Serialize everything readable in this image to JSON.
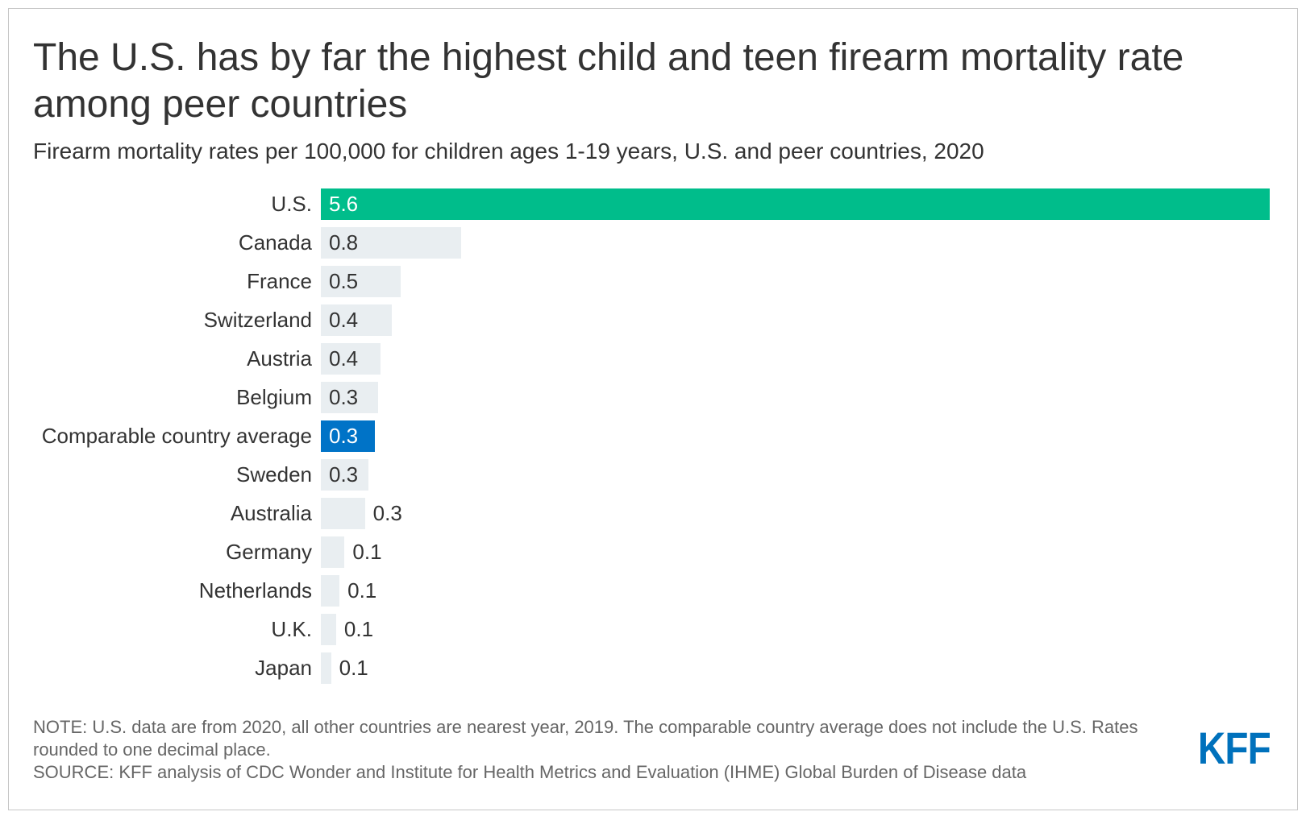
{
  "chart_data": {
    "type": "bar",
    "orientation": "horizontal",
    "title": "The U.S. has by far the highest child and teen firearm mortality rate among peer countries",
    "subtitle": "Firearm mortality rates per 100,000 for children ages 1-19 years, U.S. and peer countries, 2020",
    "categories": [
      "U.S.",
      "Canada",
      "France",
      "Switzerland",
      "Austria",
      "Belgium",
      "Comparable country average",
      "Sweden",
      "Australia",
      "Germany",
      "Netherlands",
      "U.K.",
      "Japan"
    ],
    "values": [
      5.6,
      0.83,
      0.47,
      0.42,
      0.35,
      0.34,
      0.32,
      0.28,
      0.26,
      0.14,
      0.11,
      0.09,
      0.06
    ],
    "value_labels": [
      "5.6",
      "0.8",
      "0.5",
      "0.4",
      "0.4",
      "0.3",
      "0.3",
      "0.3",
      "0.3",
      "0.1",
      "0.1",
      "0.1",
      "0.1"
    ],
    "bar_color": "#E9EEF1",
    "highlight": {
      "U.S.": "#00BD8B",
      "Comparable country average": "#0073C7"
    },
    "highlight_label_color": "#FFFFFF",
    "label_color": "#333333",
    "grid": false,
    "legend": "none",
    "note": "NOTE: U.S. data are from 2020, all other countries are nearest year, 2019. The comparable country average does not include the U.S. Rates rounded to one decimal place.",
    "source": "SOURCE: KFF analysis of CDC Wonder and Institute for Health Metrics and Evaluation (IHME) Global Burden of Disease data"
  },
  "logo": {
    "text": "KFF",
    "color": "#0071BC"
  }
}
